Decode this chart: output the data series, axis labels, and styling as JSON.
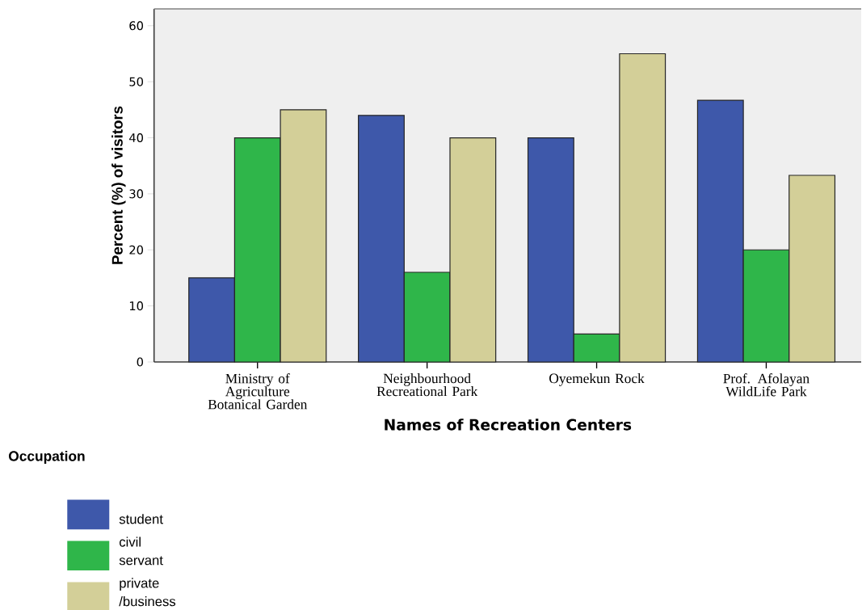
{
  "chart_data": {
    "type": "bar",
    "xlabel": "Names of Recreation Centers",
    "ylabel": "Percent (%) of visitors",
    "legend_title": "Occupation",
    "categories": [
      "Ministry of Agriculture Botanical Garden",
      "Neighbourhood Recreational Park",
      "Oyemekun Rock",
      "Prof. Afolayan WildLife Park"
    ],
    "series": [
      {
        "name": "student",
        "color": "#3e58aa",
        "values": [
          15,
          44,
          40,
          46.7
        ]
      },
      {
        "name": "civil servant",
        "color": "#2fb64a",
        "values": [
          40,
          16,
          5,
          20
        ]
      },
      {
        "name": "private /business",
        "color": "#d3cf98",
        "values": [
          45,
          40,
          55,
          33.3
        ]
      }
    ],
    "ylim": [
      0,
      63
    ],
    "yticks": [
      0,
      10,
      20,
      30,
      40,
      50,
      60
    ],
    "grid": false,
    "legend": "bottom left"
  }
}
